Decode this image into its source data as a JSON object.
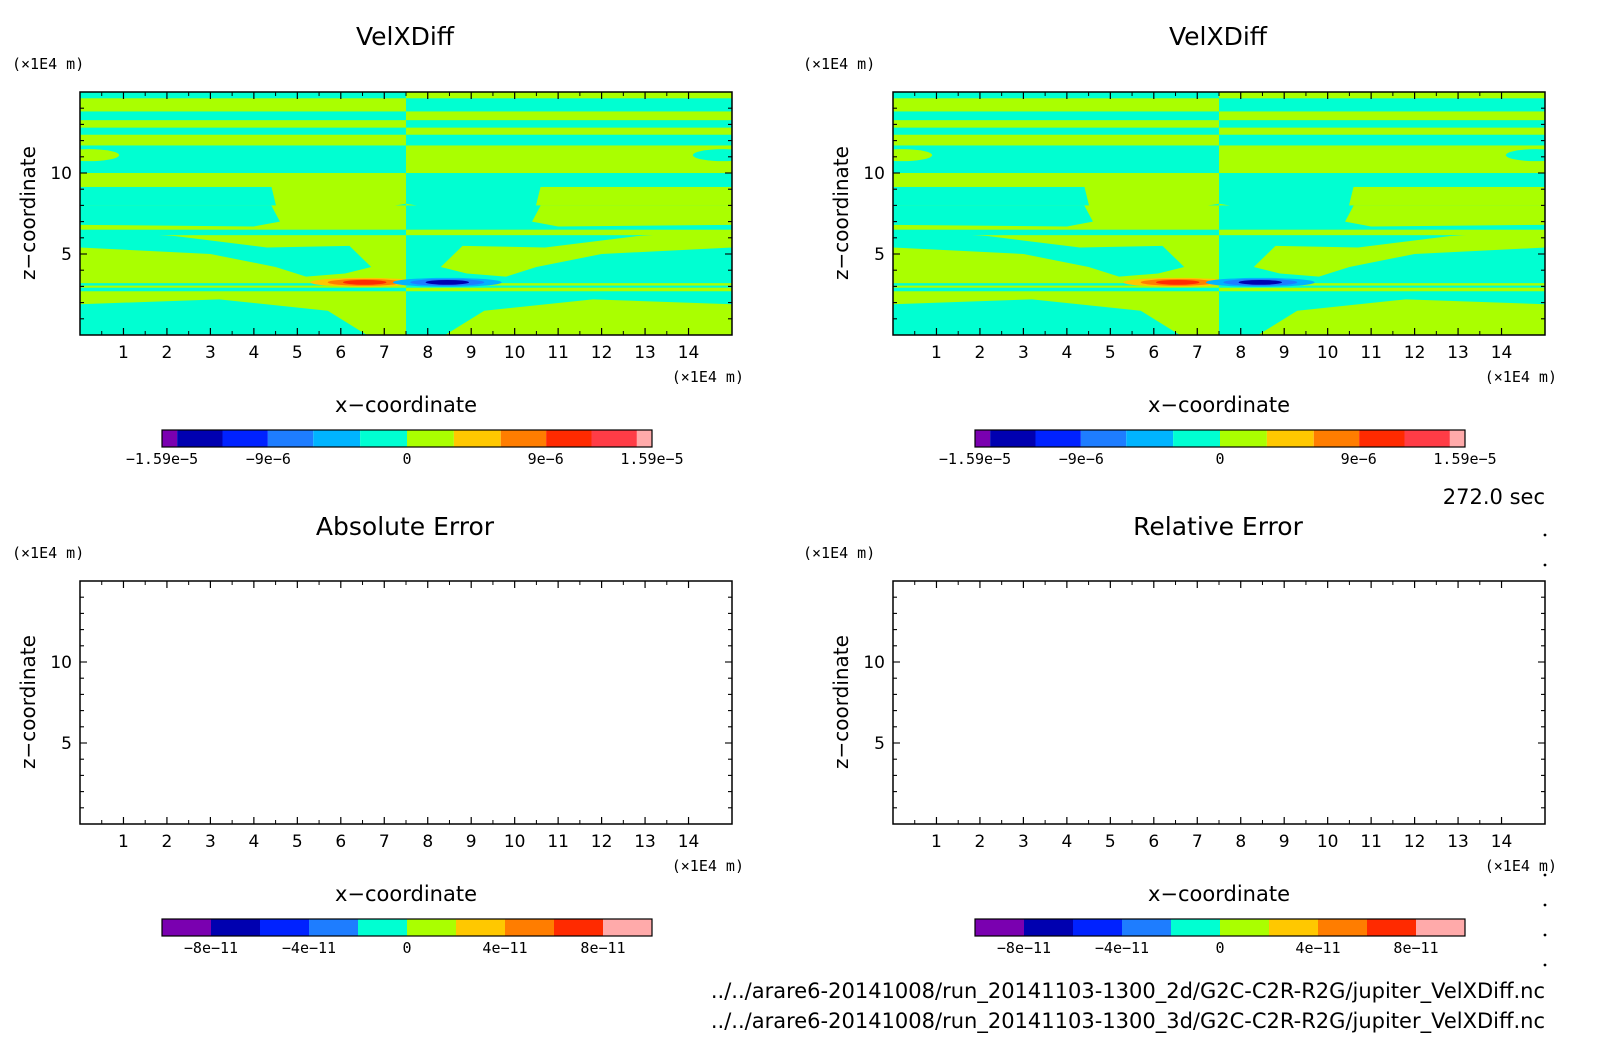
{
  "time_label": "272.0 sec",
  "files": [
    "../../arare6-20141008/run_20141103-1300_2d/G2C-C2R-R2G/jupiter_VelXDiff.nc",
    "../../arare6-20141008/run_20141103-1300_3d/G2C-C2R-R2G/jupiter_VelXDiff.nc"
  ],
  "colors": {
    "levels": [
      "#7a00b0",
      "#0000b0",
      "#0022ff",
      "#1e7dff",
      "#00b4ff",
      "#00ffd2",
      "#aaff00",
      "#ffc800",
      "#ff7d00",
      "#ff2a00",
      "#ff3c46",
      "#ffaaaa"
    ],
    "purple": "#7a00b0",
    "navy": "#0000b0",
    "blue": "#0022ff",
    "azure": "#1e7dff",
    "sky": "#00b4ff",
    "cyan": "#00ffd2",
    "lime": "#aaff00",
    "gold": "#ffc800",
    "orange": "#ff7d00",
    "red": "#ff2a00",
    "crimson": "#ff3c46",
    "pink": "#ffaaaa"
  },
  "chart_data": [
    {
      "type": "heatmap",
      "title": "VelXDiff",
      "xlabel": "x−coordinate",
      "ylabel": "z−coordinate",
      "x_unit": "(×1E4 m)",
      "y_unit": "(×1E4 m)",
      "xlim": [
        0,
        15
      ],
      "ylim": [
        0,
        15
      ],
      "x_ticks": [
        1,
        2,
        3,
        4,
        5,
        6,
        7,
        8,
        9,
        10,
        11,
        12,
        13,
        14
      ],
      "y_ticks": [
        5,
        10
      ],
      "legend": "below",
      "colorbar": {
        "levels": [
          -1.59e-05,
          1.59e-05
        ],
        "labels": [
          "−1.59e−5",
          "−9e−6",
          "0",
          "9e−6",
          "1.59e−5"
        ],
        "label_values": [
          -1.59e-05,
          -9e-06,
          0,
          9e-06,
          1.59e-05
        ]
      },
      "field": "cyan/lime banded pattern, antisymmetric about x = 7.5; extremes near z = 3.3 at x ≈ 6.5 (positive) and x ≈ 8.5 (negative)"
    },
    {
      "type": "heatmap",
      "title": "VelXDiff",
      "xlabel": "x−coordinate",
      "ylabel": "z−coordinate",
      "x_unit": "(×1E4 m)",
      "y_unit": "(×1E4 m)",
      "xlim": [
        0,
        15
      ],
      "ylim": [
        0,
        15
      ],
      "x_ticks": [
        1,
        2,
        3,
        4,
        5,
        6,
        7,
        8,
        9,
        10,
        11,
        12,
        13,
        14
      ],
      "y_ticks": [
        5,
        10
      ],
      "legend": "below",
      "colorbar": {
        "levels": [
          -1.59e-05,
          1.59e-05
        ],
        "labels": [
          "−1.59e−5",
          "−9e−6",
          "0",
          "9e−6",
          "1.59e−5"
        ],
        "label_values": [
          -1.59e-05,
          -9e-06,
          0,
          9e-06,
          1.59e-05
        ]
      },
      "field": "identical to first panel"
    },
    {
      "type": "heatmap",
      "title": "Absolute Error",
      "xlabel": "x−coordinate",
      "ylabel": "z−coordinate",
      "x_unit": "(×1E4 m)",
      "y_unit": "(×1E4 m)",
      "xlim": [
        0,
        15
      ],
      "ylim": [
        0,
        15
      ],
      "x_ticks": [
        1,
        2,
        3,
        4,
        5,
        6,
        7,
        8,
        9,
        10,
        11,
        12,
        13,
        14
      ],
      "y_ticks": [
        5,
        10
      ],
      "legend": "below",
      "colorbar": {
        "levels": [
          -1e-10,
          1e-10
        ],
        "labels": [
          "−8e−11",
          "−4e−11",
          "0",
          "4e−11",
          "8e−11"
        ],
        "label_values": [
          -8e-11,
          -4e-11,
          0,
          4e-11,
          8e-11
        ]
      },
      "field": "empty (all zero)"
    },
    {
      "type": "heatmap",
      "title": "Relative Error",
      "xlabel": "x−coordinate",
      "ylabel": "z−coordinate",
      "x_unit": "(×1E4 m)",
      "y_unit": "(×1E4 m)",
      "xlim": [
        0,
        15
      ],
      "ylim": [
        0,
        15
      ],
      "x_ticks": [
        1,
        2,
        3,
        4,
        5,
        6,
        7,
        8,
        9,
        10,
        11,
        12,
        13,
        14
      ],
      "y_ticks": [
        5,
        10
      ],
      "legend": "below",
      "colorbar": {
        "levels": [
          -1e-10,
          1e-10
        ],
        "labels": [
          "−8e−11",
          "−4e−11",
          "0",
          "4e−11",
          "8e−11"
        ],
        "label_values": [
          -8e-11,
          -4e-11,
          0,
          4e-11,
          8e-11
        ]
      },
      "field": "empty (all zero)"
    }
  ]
}
